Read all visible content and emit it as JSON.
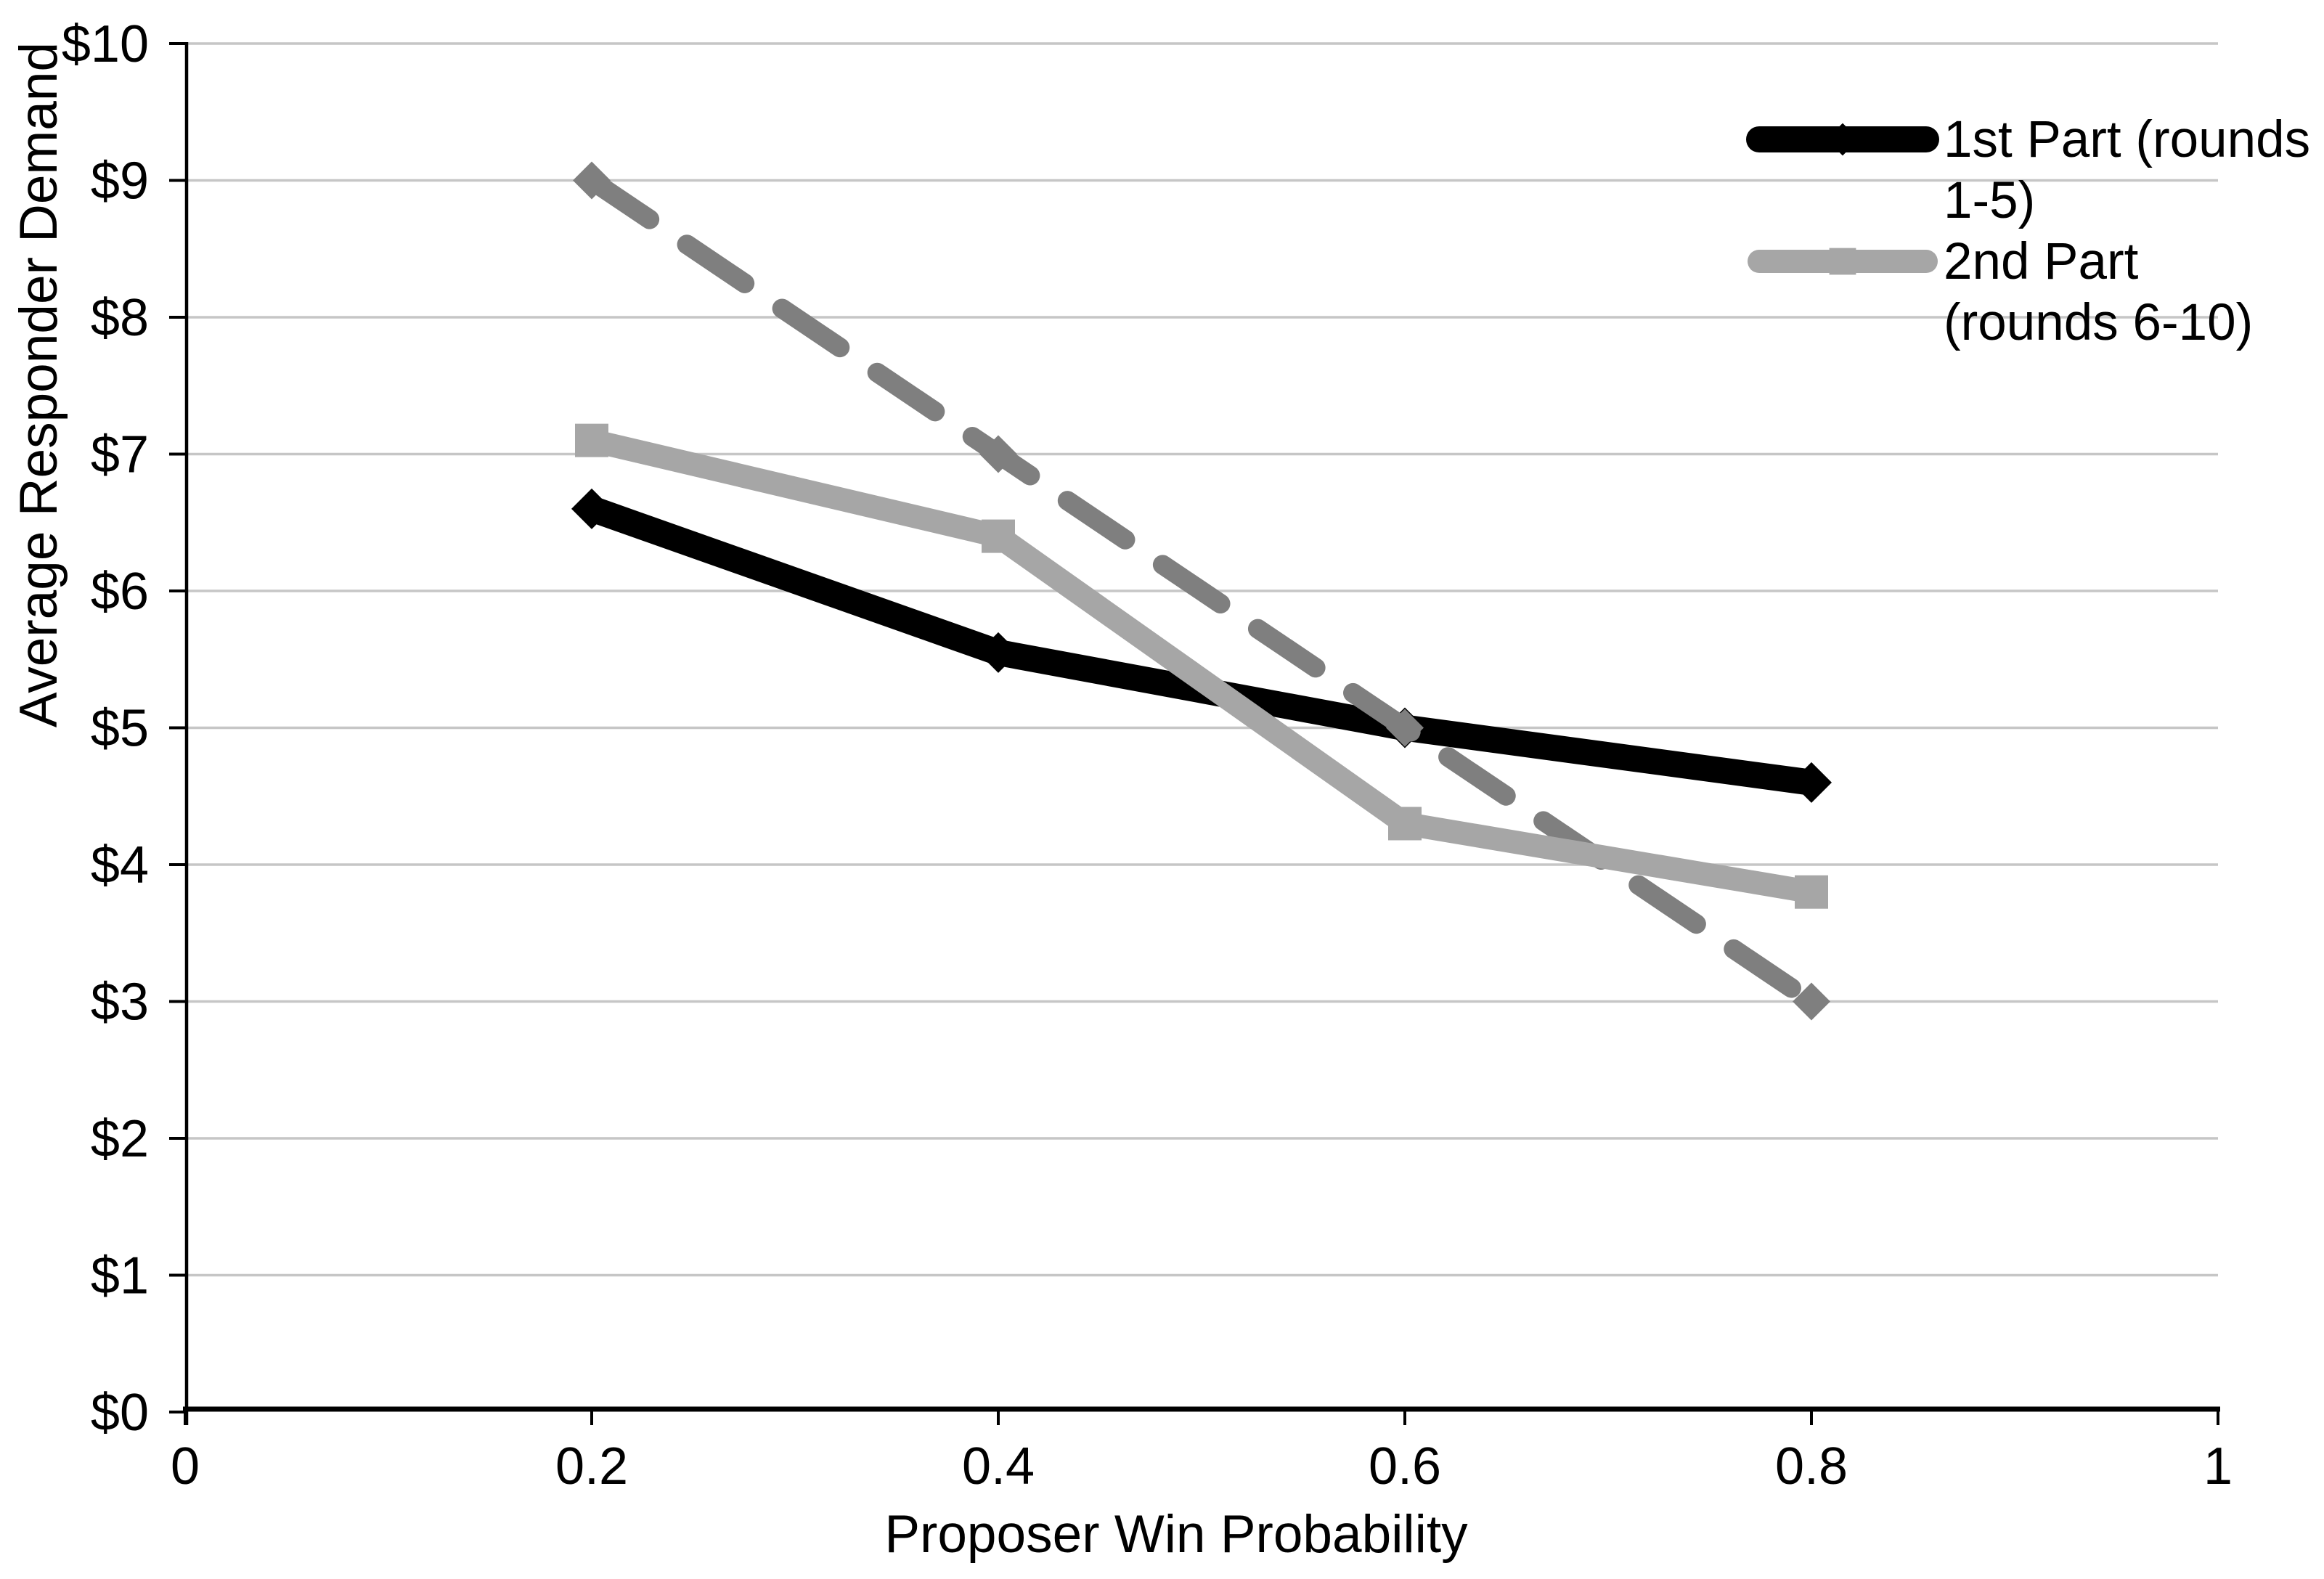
{
  "chart_data": {
    "type": "line",
    "title": "",
    "xlabel": "Proposer Win Probability",
    "ylabel": "Average Responder Demand",
    "xlim": [
      0,
      1
    ],
    "ylim": [
      0,
      10
    ],
    "grid": true,
    "gridline_color": "#C6C6C6",
    "axis_color": "#000000",
    "x_ticks": [
      "0",
      "0.2",
      "0.4",
      "0.6",
      "0.8",
      "1"
    ],
    "x_tick_values": [
      0,
      0.2,
      0.4,
      0.6,
      0.8,
      1
    ],
    "y_ticks": [
      "$0",
      "$1",
      "$2",
      "$3",
      "$4",
      "$5",
      "$6",
      "$7",
      "$8",
      "$9",
      "$10"
    ],
    "y_tick_values": [
      0,
      1,
      2,
      3,
      4,
      5,
      6,
      7,
      8,
      9,
      10
    ],
    "x": [
      0.2,
      0.4,
      0.6,
      0.8
    ],
    "series": [
      {
        "name": "1st Part (rounds 1-5)",
        "values": [
          6.6,
          5.55,
          5.0,
          4.6
        ],
        "color": "#000000",
        "line_style": "solid",
        "marker": "diamond",
        "in_legend": true
      },
      {
        "name": "2nd Part (rounds 6-10)",
        "values": [
          7.1,
          6.4,
          4.3,
          3.8
        ],
        "color": "#A6A6A6",
        "line_style": "solid",
        "marker": "square",
        "in_legend": true
      },
      {
        "name": "",
        "values": [
          9,
          7,
          5,
          3
        ],
        "color": "#7F7F7F",
        "line_style": "dashed",
        "marker": "diamond",
        "in_legend": false
      }
    ],
    "legend": {
      "position": "top-right",
      "entries": [
        {
          "series_index": 0,
          "lines": [
            "1st Part (rounds",
            "1-5)"
          ]
        },
        {
          "series_index": 1,
          "lines": [
            "2nd Part",
            "(rounds 6-10)"
          ]
        }
      ]
    }
  }
}
